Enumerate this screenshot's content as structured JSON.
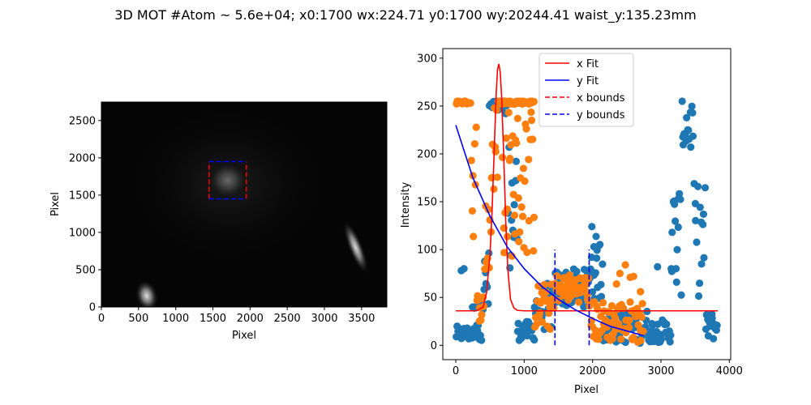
{
  "figure": {
    "title": "3D MOT #Atom ~ 5.6e+04; x0:1700 wx:224.71 y0:1700 wy:20244.41 waist_y:135.23mm"
  },
  "chart_data": [
    {
      "type": "heatmap",
      "title": "",
      "xlabel": "Pixel",
      "ylabel": "Pixel",
      "xlim": [
        0,
        3840
      ],
      "ylim": [
        0,
        2748
      ],
      "xticks": [
        0,
        500,
        1000,
        1500,
        2000,
        2500,
        3000,
        3500
      ],
      "yticks": [
        0,
        500,
        1000,
        1500,
        2000,
        2500
      ],
      "colormap": "gray",
      "grid": false,
      "blob": {
        "x": 1700,
        "y": 1700,
        "description_visible": "bright atom cloud"
      },
      "bright_spots": [
        {
          "x": 610,
          "y": 150
        },
        {
          "x": 3420,
          "y": 800
        }
      ],
      "x_bounds": [
        1450,
        1950
      ],
      "y_bounds": [
        1450,
        1950
      ],
      "x_bounds_color": "#ff0000",
      "y_bounds_color": "#0000ff"
    },
    {
      "type": "scatter",
      "title": "",
      "xlabel": "Pixel",
      "ylabel": "Intensity",
      "xlim": [
        -190,
        4020
      ],
      "ylim": [
        -15,
        310
      ],
      "xticks": [
        0,
        1000,
        2000,
        3000,
        4000
      ],
      "yticks": [
        0,
        50,
        100,
        150,
        200,
        250,
        300
      ],
      "grid": false,
      "legend_position": "top-center",
      "scatter_series": [
        {
          "color": "#1f77b4",
          "segments": [
            {
              "x0": 0,
              "x1": 240,
              "base": 12,
              "noise": 8
            },
            {
              "x0": 240,
              "x1": 380,
              "base": 25,
              "noise": 20
            },
            {
              "x0": 380,
              "x1": 490,
              "base": 60,
              "noise": 40
            },
            {
              "x0": 490,
              "x1": 760,
              "base": 250,
              "noise": 8
            },
            {
              "x0": 760,
              "x1": 900,
              "base": 140,
              "noise": 80
            },
            {
              "x0": 900,
              "x1": 1150,
              "base": 15,
              "noise": 10
            },
            {
              "x0": 1150,
              "x1": 1450,
              "base": 40,
              "noise": 25
            },
            {
              "x0": 1450,
              "x1": 1950,
              "base": 60,
              "noise": 20
            },
            {
              "x0": 1950,
              "x1": 2150,
              "base": 80,
              "noise": 35
            },
            {
              "x0": 2150,
              "x1": 2800,
              "base": 20,
              "noise": 18
            },
            {
              "x0": 2800,
              "x1": 3150,
              "base": 15,
              "noise": 12
            },
            {
              "x0": 3150,
              "x1": 3300,
              "base": 110,
              "noise": 60
            },
            {
              "x0": 3300,
              "x1": 3480,
              "base": 230,
              "noise": 30
            },
            {
              "x0": 3480,
              "x1": 3650,
              "base": 110,
              "noise": 60
            },
            {
              "x0": 3650,
              "x1": 3830,
              "base": 20,
              "noise": 15
            }
          ],
          "outliers": [
            [
              80,
              78
            ],
            [
              120,
              80
            ],
            [
              260,
              40
            ],
            [
              1990,
              124
            ],
            [
              2020,
              103
            ],
            [
              2060,
              91
            ],
            [
              2950,
              82
            ],
            [
              3150,
              80
            ],
            [
              3220,
              80
            ]
          ]
        },
        {
          "color": "#ff7f0e",
          "segments": [
            {
              "x0": 0,
              "x1": 220,
              "base": 254,
              "noise": 2
            },
            {
              "x0": 220,
              "x1": 300,
              "base": 180,
              "noise": 70
            },
            {
              "x0": 300,
              "x1": 420,
              "base": 40,
              "noise": 15
            },
            {
              "x0": 420,
              "x1": 520,
              "base": 120,
              "noise": 60
            },
            {
              "x0": 520,
              "x1": 620,
              "base": 200,
              "noise": 55
            },
            {
              "x0": 620,
              "x1": 1150,
              "base": 254,
              "noise": 2
            },
            {
              "x0": 680,
              "x1": 1150,
              "base": 170,
              "noise": 80
            },
            {
              "x0": 1150,
              "x1": 1450,
              "base": 40,
              "noise": 25
            },
            {
              "x0": 1450,
              "x1": 1950,
              "base": 60,
              "noise": 15
            },
            {
              "x0": 1950,
              "x1": 2750,
              "base": 25,
              "noise": 22
            }
          ],
          "outliers": [
            [
              2350,
              64
            ],
            [
              2400,
              75
            ],
            [
              2480,
              84
            ],
            [
              2550,
              71
            ],
            [
              2600,
              72
            ],
            [
              2700,
              56
            ]
          ]
        }
      ],
      "line_series": [
        {
          "name": "x Fit",
          "color": "#ff0000",
          "style": "solid",
          "x": [
            0,
            300,
            400,
            450,
            500,
            530,
            560,
            590,
            610,
            630,
            650,
            670,
            700,
            730,
            760,
            800,
            850,
            900,
            1000,
            1500,
            2000,
            2500,
            3000,
            3500,
            3830
          ],
          "y": [
            36,
            36,
            40,
            55,
            95,
            140,
            200,
            262,
            288,
            294,
            285,
            260,
            200,
            130,
            80,
            48,
            39,
            36.5,
            36,
            36,
            36,
            36,
            36,
            36,
            36
          ]
        },
        {
          "name": "y Fit",
          "color": "#0000ff",
          "style": "solid",
          "x": [
            0,
            250,
            500,
            750,
            1000,
            1250,
            1500,
            1750,
            2000,
            2250,
            2500,
            2750
          ],
          "y": [
            230,
            175,
            135,
            103,
            80,
            62,
            48,
            37,
            28,
            20,
            15,
            10
          ]
        },
        {
          "name": "x bounds",
          "color": "#ff0000",
          "style": "dashed",
          "x": [],
          "y": []
        },
        {
          "name": "y bounds",
          "color": "#0000ff",
          "style": "dashed",
          "x": [],
          "y": []
        }
      ],
      "vlines": [
        {
          "x": 1450,
          "y0": 0,
          "y1": 100,
          "color": "#0000ff"
        },
        {
          "x": 1950,
          "y0": 0,
          "y1": 100,
          "color": "#0000ff"
        }
      ]
    }
  ]
}
